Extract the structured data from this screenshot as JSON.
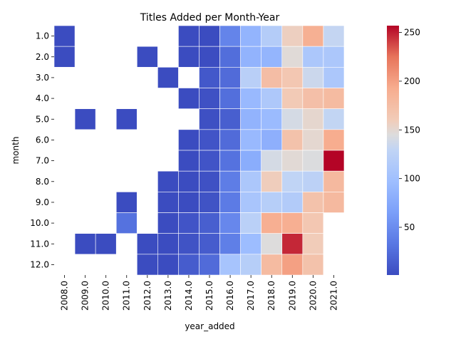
{
  "chart_data": {
    "type": "heatmap",
    "title": "Titles Added per Month-Year",
    "xlabel": "year_added",
    "ylabel": "month",
    "x_categories": [
      "2008.0",
      "2009.0",
      "2010.0",
      "2011.0",
      "2012.0",
      "2013.0",
      "2014.0",
      "2015.0",
      "2016.0",
      "2017.0",
      "2018.0",
      "2019.0",
      "2020.0",
      "2021.0"
    ],
    "y_categories": [
      "1.0",
      "2.0",
      "3.0",
      "4.0",
      "5.0",
      "6.0",
      "7.0",
      "8.0",
      "9.0",
      "10.0",
      "11.0",
      "12.0"
    ],
    "values": [
      [
        1,
        null,
        null,
        null,
        null,
        null,
        1,
        1,
        43,
        87,
        118,
        157,
        189,
        131
      ],
      [
        1,
        null,
        null,
        null,
        1,
        null,
        1,
        2,
        26,
        86,
        88,
        147,
        110,
        110
      ],
      [
        null,
        null,
        null,
        null,
        null,
        1,
        null,
        10,
        24,
        122,
        175,
        165,
        135,
        110
      ],
      [
        null,
        null,
        null,
        null,
        null,
        null,
        1,
        5,
        27,
        92,
        112,
        162,
        173,
        178
      ],
      [
        null,
        1,
        null,
        1,
        null,
        null,
        null,
        4,
        15,
        86,
        94,
        140,
        151,
        130
      ],
      [
        null,
        null,
        null,
        null,
        null,
        null,
        1,
        7,
        24,
        92,
        82,
        170,
        150,
        192
      ],
      [
        null,
        null,
        null,
        null,
        null,
        null,
        1,
        7,
        29,
        79,
        140,
        148,
        144,
        257
      ],
      [
        null,
        null,
        null,
        null,
        null,
        1,
        1,
        5,
        38,
        110,
        159,
        129,
        125,
        180
      ],
      [
        null,
        null,
        null,
        1,
        null,
        1,
        1,
        6,
        36,
        107,
        120,
        116,
        170,
        180
      ],
      [
        null,
        null,
        null,
        29,
        null,
        1,
        7,
        15,
        46,
        123,
        190,
        190,
        165,
        null
      ],
      [
        null,
        1,
        1,
        null,
        1,
        1,
        6,
        13,
        39,
        96,
        145,
        247,
        160,
        null
      ],
      [
        null,
        null,
        null,
        null,
        1,
        1,
        13,
        24,
        105,
        120,
        178,
        200,
        170,
        null
      ]
    ],
    "colorbar": {
      "min": 1,
      "max": 257,
      "ticks": [
        50,
        100,
        150,
        200,
        250
      ],
      "colormap": "coolwarm"
    },
    "grid": false,
    "legend": "colorbar-right"
  }
}
